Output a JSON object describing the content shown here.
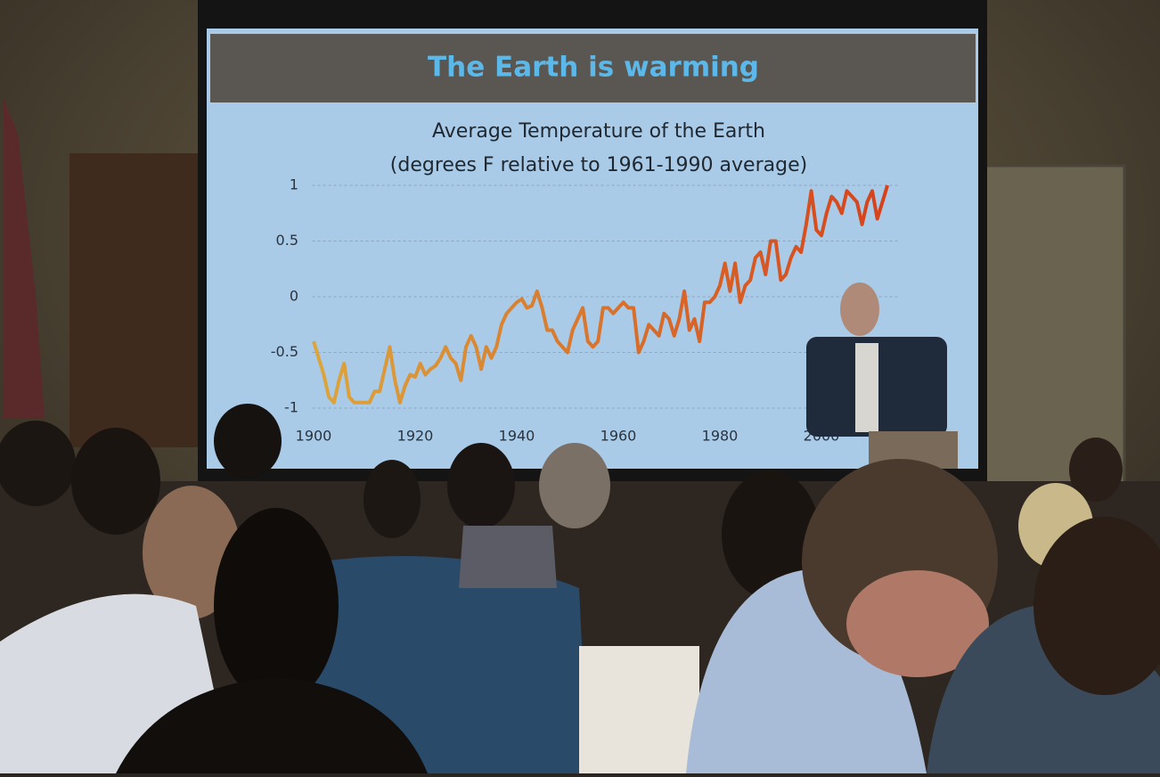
{
  "chart_data": {
    "type": "line",
    "slide_title": "The Earth is warming",
    "title": "Average Temperature of the Earth",
    "subtitle": "(degrees F relative to 1961-1990 average)",
    "x": [
      1900,
      1901,
      1902,
      1903,
      1904,
      1905,
      1906,
      1907,
      1908,
      1909,
      1910,
      1911,
      1912,
      1913,
      1914,
      1915,
      1916,
      1917,
      1918,
      1919,
      1920,
      1921,
      1922,
      1923,
      1924,
      1925,
      1926,
      1927,
      1928,
      1929,
      1930,
      1931,
      1932,
      1933,
      1934,
      1935,
      1936,
      1937,
      1938,
      1939,
      1940,
      1941,
      1942,
      1943,
      1944,
      1945,
      1946,
      1947,
      1948,
      1949,
      1950,
      1951,
      1952,
      1953,
      1954,
      1955,
      1956,
      1957,
      1958,
      1959,
      1960,
      1961,
      1962,
      1963,
      1964,
      1965,
      1966,
      1967,
      1968,
      1969,
      1970,
      1971,
      1972,
      1973,
      1974,
      1975,
      1976,
      1977,
      1978,
      1979,
      1980,
      1981,
      1982,
      1983,
      1984,
      1985,
      1986,
      1987,
      1988,
      1989,
      1990,
      1991,
      1992,
      1993,
      1994,
      1995,
      1996,
      1997,
      1998,
      1999,
      2000,
      2001,
      2002,
      2003,
      2004,
      2005,
      2006,
      2007,
      2008,
      2009,
      2010,
      2011,
      2012,
      2013
    ],
    "values": [
      -0.4,
      -0.55,
      -0.7,
      -0.9,
      -0.95,
      -0.75,
      -0.6,
      -0.9,
      -0.95,
      -0.95,
      -0.95,
      -0.95,
      -0.85,
      -0.85,
      -0.65,
      -0.45,
      -0.75,
      -0.95,
      -0.8,
      -0.7,
      -0.72,
      -0.6,
      -0.7,
      -0.65,
      -0.62,
      -0.55,
      -0.45,
      -0.55,
      -0.6,
      -0.75,
      -0.45,
      -0.35,
      -0.45,
      -0.65,
      -0.45,
      -0.55,
      -0.45,
      -0.25,
      -0.15,
      -0.1,
      -0.05,
      -0.02,
      -0.1,
      -0.08,
      0.05,
      -0.1,
      -0.3,
      -0.3,
      -0.4,
      -0.45,
      -0.5,
      -0.3,
      -0.2,
      -0.1,
      -0.4,
      -0.45,
      -0.4,
      -0.1,
      -0.1,
      -0.15,
      -0.1,
      -0.05,
      -0.1,
      -0.1,
      -0.5,
      -0.4,
      -0.25,
      -0.3,
      -0.35,
      -0.15,
      -0.2,
      -0.35,
      -0.2,
      0.05,
      -0.3,
      -0.2,
      -0.4,
      -0.05,
      -0.05,
      0.0,
      0.1,
      0.3,
      0.05,
      0.3,
      -0.05,
      0.1,
      0.15,
      0.35,
      0.4,
      0.2,
      0.5,
      0.5,
      0.15,
      0.2,
      0.35,
      0.45,
      0.4,
      0.65,
      0.95,
      0.6,
      0.55,
      0.75,
      0.9,
      0.85,
      0.75,
      0.95,
      0.9,
      0.85,
      0.65,
      0.85,
      0.95,
      0.7,
      0.85,
      1.0
    ],
    "color": [
      "#dca53c",
      "#d5421c"
    ],
    "xlim": [
      1898,
      2015
    ],
    "xticks": [
      1900,
      1920,
      1940,
      1960,
      1980,
      2000
    ],
    "ylim": [
      -1.1,
      1.1
    ],
    "yticks": [
      1,
      0.5,
      0,
      -0.5,
      -1
    ],
    "grid": true
  }
}
